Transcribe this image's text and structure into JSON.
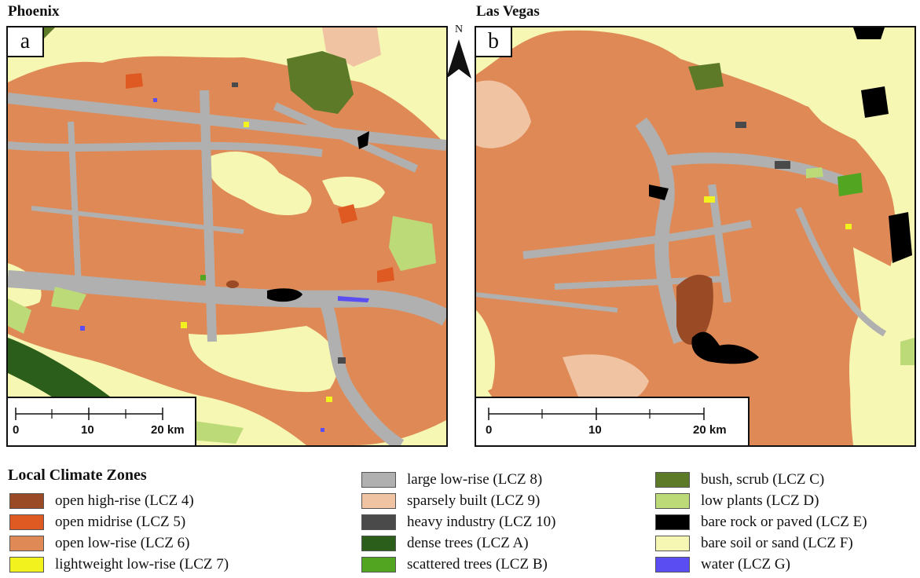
{
  "panels": [
    {
      "title": "Phoenix",
      "letter": "a",
      "scale": {
        "ticks": [
          "0",
          "10",
          "20 km"
        ]
      }
    },
    {
      "title": "Las Vegas",
      "letter": "b",
      "scale": {
        "ticks": [
          "0",
          "10",
          "20 km"
        ]
      }
    }
  ],
  "north_arrow": {
    "label": "N"
  },
  "legend": {
    "title": "Local Climate Zones",
    "items": [
      {
        "label": "open high-rise (LCZ 4)",
        "color": "#9a4a24"
      },
      {
        "label": "open midrise (LCZ 5)",
        "color": "#df5a22"
      },
      {
        "label": "open low-rise (LCZ 6)",
        "color": "#df8a56"
      },
      {
        "label": "lightweight low-rise (LCZ 7)",
        "color": "#f2f21e"
      },
      {
        "label": "large low-rise (LCZ 8)",
        "color": "#b0b0b0"
      },
      {
        "label": "sparsely built (LCZ 9)",
        "color": "#f0c3a3"
      },
      {
        "label": "heavy industry (LCZ 10)",
        "color": "#4a4a4a"
      },
      {
        "label": "dense trees (LCZ A)",
        "color": "#2b5e1a"
      },
      {
        "label": "scattered trees (LCZ B)",
        "color": "#52a521"
      },
      {
        "label": "bush, scrub (LCZ C)",
        "color": "#5c7a28"
      },
      {
        "label": "low plants (LCZ D)",
        "color": "#bcdb78"
      },
      {
        "label": "bare rock or paved (LCZ E)",
        "color": "#000000"
      },
      {
        "label": "bare soil or sand (LCZ F)",
        "color": "#f7f7b4"
      },
      {
        "label": "water (LCZ G)",
        "color": "#5a4df2"
      }
    ]
  }
}
